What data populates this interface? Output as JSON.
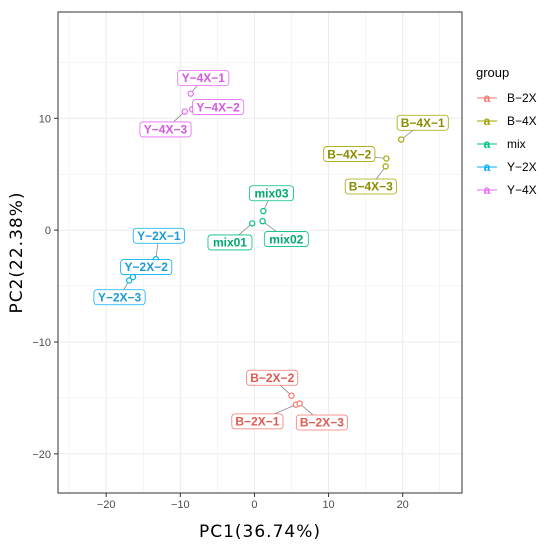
{
  "chart_data": {
    "type": "scatter",
    "xlabel": "PC1(36.74%)",
    "ylabel": "PC2(22.38%)",
    "xlim": [
      -26.5,
      28
    ],
    "ylim": [
      -23.5,
      19.5
    ],
    "xticks": [
      -20,
      -10,
      0,
      10,
      20
    ],
    "yticks": [
      -20,
      -10,
      0,
      10
    ],
    "grid": true,
    "legend": {
      "title": "group",
      "placement": "right",
      "entries": [
        {
          "name": "B−2X",
          "color": "#F8766D"
        },
        {
          "name": "B−4X",
          "color": "#A3A500"
        },
        {
          "name": "mix",
          "color": "#00BF7D"
        },
        {
          "name": "Y−2X",
          "color": "#00B0F6"
        },
        {
          "name": "Y−4X",
          "color": "#E76BF3"
        }
      ]
    },
    "series": [
      {
        "name": "B−2X",
        "color": "#F8766D",
        "label_color": "#E05A50",
        "points": [
          {
            "label": "B−2X−1",
            "x": 5.6,
            "y": -15.6,
            "lx": 0.4,
            "ly": -17.1
          },
          {
            "label": "B−2X−2",
            "x": 5.0,
            "y": -14.8,
            "lx": 2.4,
            "ly": -13.2
          },
          {
            "label": "B−2X−3",
            "x": 6.1,
            "y": -15.5,
            "lx": 9.1,
            "ly": -17.2
          }
        ]
      },
      {
        "name": "B−4X",
        "color": "#A3A500",
        "label_color": "#8C8C00",
        "points": [
          {
            "label": "B−4X−1",
            "x": 19.8,
            "y": 8.1,
            "lx": 22.7,
            "ly": 9.6
          },
          {
            "label": "B−4X−2",
            "x": 17.8,
            "y": 6.4,
            "lx": 12.8,
            "ly": 6.8
          },
          {
            "label": "B−4X−3",
            "x": 17.7,
            "y": 5.7,
            "lx": 15.7,
            "ly": 3.9
          }
        ]
      },
      {
        "name": "mix",
        "color": "#00BF7D",
        "label_color": "#00A86B",
        "points": [
          {
            "label": "mix01",
            "x": -0.3,
            "y": 0.6,
            "lx": -3.3,
            "ly": -1.1
          },
          {
            "label": "mix02",
            "x": 1.1,
            "y": 0.8,
            "lx": 4.3,
            "ly": -0.8
          },
          {
            "label": "mix03",
            "x": 1.2,
            "y": 1.7,
            "lx": 2.3,
            "ly": 3.3
          }
        ]
      },
      {
        "name": "Y−2X",
        "color": "#00B0F6",
        "label_color": "#1C9AD6",
        "points": [
          {
            "label": "Y−2X−1",
            "x": -13.3,
            "y": -2.6,
            "lx": -12.9,
            "ly": -0.5
          },
          {
            "label": "Y−2X−2",
            "x": -16.4,
            "y": -4.2,
            "lx": -14.6,
            "ly": -3.3
          },
          {
            "label": "Y−2X−3",
            "x": -16.9,
            "y": -4.5,
            "lx": -18.2,
            "ly": -6.0
          }
        ]
      },
      {
        "name": "Y−4X",
        "color": "#E76BF3",
        "label_color": "#D45AE0",
        "points": [
          {
            "label": "Y−4X−1",
            "x": -8.6,
            "y": 12.2,
            "lx": -6.9,
            "ly": 13.6
          },
          {
            "label": "Y−4X−2",
            "x": -8.4,
            "y": 10.8,
            "lx": -4.9,
            "ly": 11.0
          },
          {
            "label": "Y−4X−3",
            "x": -9.4,
            "y": 10.6,
            "lx": -12.0,
            "ly": 9.0
          }
        ]
      }
    ]
  }
}
